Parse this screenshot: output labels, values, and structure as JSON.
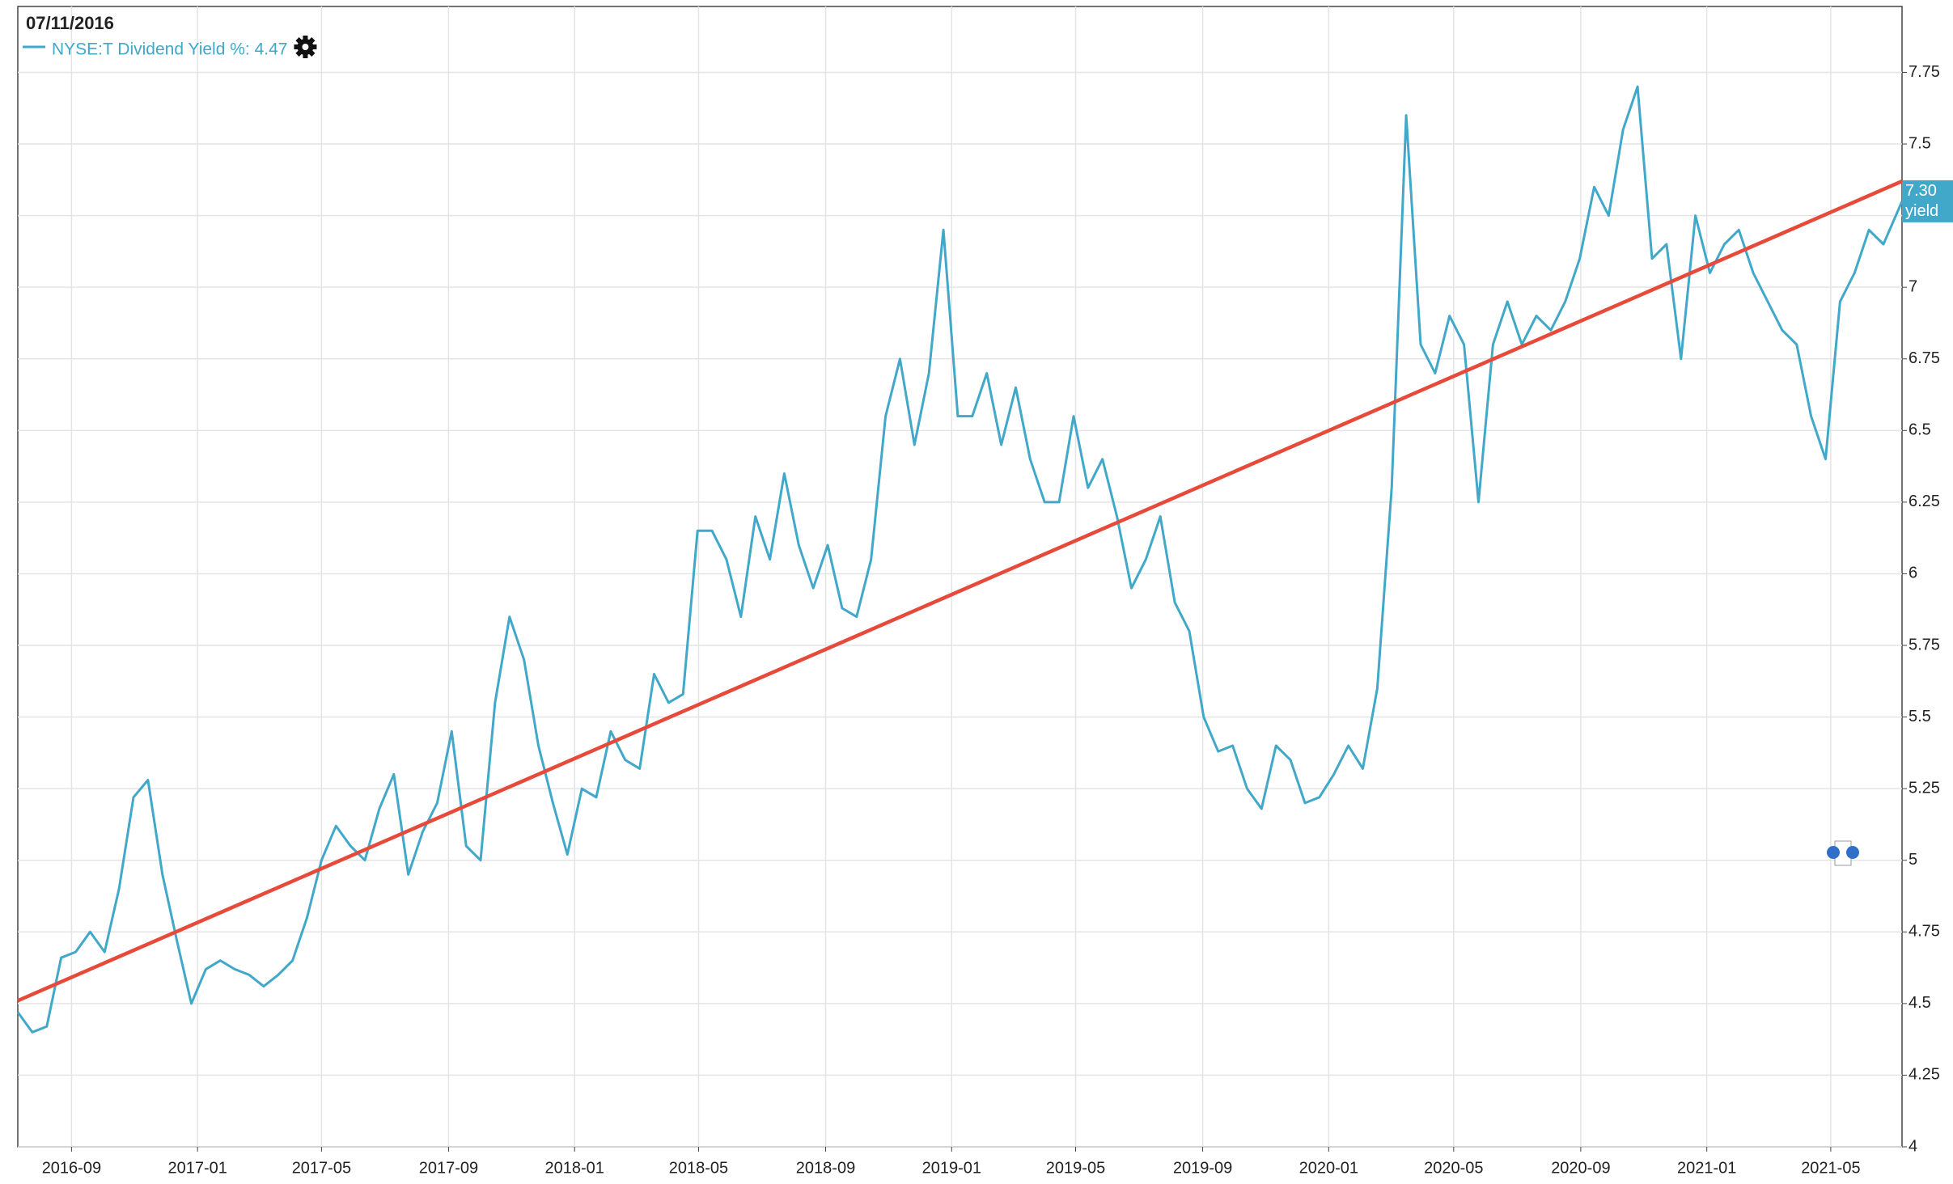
{
  "chart_data": {
    "type": "line",
    "crosshair_date": "07/11/2016",
    "xlim": [
      "2016-07-11",
      "2021-07-09"
    ],
    "xticks": [
      "2016-09",
      "2017-01",
      "2017-05",
      "2017-09",
      "2018-01",
      "2018-05",
      "2018-09",
      "2019-01",
      "2019-05",
      "2019-09",
      "2020-01",
      "2020-05",
      "2020-09",
      "2021-01",
      "2021-05"
    ],
    "ylim": [
      4,
      7.98
    ],
    "yticks": [
      4,
      4.25,
      4.5,
      4.75,
      5,
      5.25,
      5.5,
      5.75,
      6,
      6.25,
      6.5,
      6.75,
      7,
      7.25,
      7.5,
      7.75
    ],
    "grid": true,
    "x": [
      "2016-07-11",
      "2016-07-25",
      "2016-08-08",
      "2016-08-22",
      "2016-09-05",
      "2016-09-19",
      "2016-10-03",
      "2016-10-17",
      "2016-10-31",
      "2016-11-14",
      "2016-11-28",
      "2016-12-12",
      "2016-12-26",
      "2017-01-09",
      "2017-01-23",
      "2017-02-06",
      "2017-02-20",
      "2017-03-06",
      "2017-03-20",
      "2017-04-03",
      "2017-04-17",
      "2017-05-01",
      "2017-05-15",
      "2017-05-29",
      "2017-06-12",
      "2017-06-26",
      "2017-07-10",
      "2017-07-24",
      "2017-08-07",
      "2017-08-21",
      "2017-09-04",
      "2017-09-18",
      "2017-10-02",
      "2017-10-16",
      "2017-10-30",
      "2017-11-13",
      "2017-11-27",
      "2017-12-11",
      "2017-12-25",
      "2018-01-08",
      "2018-01-22",
      "2018-02-05",
      "2018-02-19",
      "2018-03-05",
      "2018-03-19",
      "2018-04-02",
      "2018-04-16",
      "2018-04-30",
      "2018-05-14",
      "2018-05-28",
      "2018-06-11",
      "2018-06-25",
      "2018-07-09",
      "2018-07-23",
      "2018-08-06",
      "2018-08-20",
      "2018-09-03",
      "2018-09-17",
      "2018-10-01",
      "2018-10-15",
      "2018-10-29",
      "2018-11-12",
      "2018-11-26",
      "2018-12-10",
      "2018-12-24",
      "2019-01-07",
      "2019-01-21",
      "2019-02-04",
      "2019-02-18",
      "2019-03-04",
      "2019-03-18",
      "2019-04-01",
      "2019-04-15",
      "2019-04-29",
      "2019-05-13",
      "2019-05-27",
      "2019-06-10",
      "2019-06-24",
      "2019-07-08",
      "2019-07-22",
      "2019-08-05",
      "2019-08-19",
      "2019-09-02",
      "2019-09-16",
      "2019-09-30",
      "2019-10-14",
      "2019-10-28",
      "2019-11-11",
      "2019-11-25",
      "2019-12-09",
      "2019-12-23",
      "2020-01-06",
      "2020-01-20",
      "2020-02-03",
      "2020-02-17",
      "2020-03-02",
      "2020-03-16",
      "2020-03-30",
      "2020-04-13",
      "2020-04-27",
      "2020-05-11",
      "2020-05-25",
      "2020-06-08",
      "2020-06-22",
      "2020-07-06",
      "2020-07-20",
      "2020-08-03",
      "2020-08-17",
      "2020-08-31",
      "2020-09-14",
      "2020-09-28",
      "2020-10-12",
      "2020-10-26",
      "2020-11-09",
      "2020-11-23",
      "2020-12-07",
      "2020-12-21",
      "2021-01-04",
      "2021-01-18",
      "2021-02-01",
      "2021-02-15",
      "2021-03-01",
      "2021-03-15",
      "2021-03-29",
      "2021-04-12",
      "2021-04-26",
      "2021-05-10",
      "2021-05-24",
      "2021-06-07",
      "2021-06-21",
      "2021-07-09"
    ],
    "series": [
      {
        "name": "NYSE:T Dividend Yield %: 4.47",
        "color": "#41a8c9",
        "values": [
          4.47,
          4.4,
          4.42,
          4.66,
          4.68,
          4.75,
          4.68,
          4.9,
          5.22,
          5.28,
          4.95,
          4.72,
          4.5,
          4.62,
          4.65,
          4.62,
          4.6,
          4.56,
          4.6,
          4.65,
          4.8,
          5.0,
          5.12,
          5.05,
          5.0,
          5.18,
          5.3,
          4.95,
          5.1,
          5.2,
          5.45,
          5.05,
          5.0,
          5.55,
          5.85,
          5.7,
          5.4,
          5.2,
          5.02,
          5.25,
          5.22,
          5.45,
          5.35,
          5.32,
          5.65,
          5.55,
          5.58,
          6.15,
          6.15,
          6.05,
          5.85,
          6.2,
          6.05,
          6.35,
          6.1,
          5.95,
          6.1,
          5.88,
          5.85,
          6.05,
          6.55,
          6.75,
          6.45,
          6.7,
          7.2,
          6.55,
          6.55,
          6.7,
          6.45,
          6.65,
          6.4,
          6.25,
          6.25,
          6.55,
          6.3,
          6.4,
          6.2,
          5.95,
          6.05,
          6.2,
          5.9,
          5.8,
          5.5,
          5.38,
          5.4,
          5.25,
          5.18,
          5.4,
          5.35,
          5.2,
          5.22,
          5.3,
          5.4,
          5.32,
          5.6,
          6.3,
          7.6,
          6.8,
          6.7,
          6.9,
          6.8,
          6.25,
          6.8,
          6.95,
          6.8,
          6.9,
          6.85,
          6.95,
          7.1,
          7.35,
          7.25,
          7.55,
          7.7,
          7.1,
          7.15,
          6.75,
          7.25,
          7.05,
          7.15,
          7.2,
          7.05,
          6.95,
          6.85,
          6.8,
          6.55,
          6.4,
          6.95,
          7.05,
          7.2,
          7.15,
          7.3
        ]
      }
    ],
    "trend": {
      "color": "#e64a3b",
      "x": [
        "2016-07-11",
        "2021-07-09"
      ],
      "values": [
        4.51,
        7.37
      ]
    },
    "badge": {
      "value": 7.3,
      "label": "7.30",
      "text": "yield"
    }
  }
}
